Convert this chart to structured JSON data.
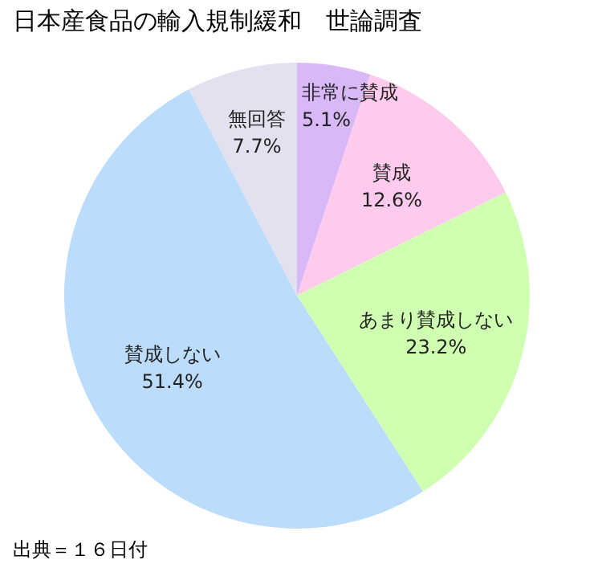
{
  "chart_data": {
    "type": "pie",
    "title": "日本産食品の輸入規制緩和　世論調査",
    "categories": [
      "非常に賛成",
      "賛成",
      "あまり賛成しない",
      "賛成しない",
      "無回答"
    ],
    "values": [
      5.1,
      12.6,
      23.2,
      51.4,
      7.7
    ],
    "value_labels": [
      "5.1%",
      "12.6%",
      "23.2%",
      "51.4%",
      "7.7%"
    ],
    "colors": [
      "#d9b8f7",
      "#ffcbec",
      "#cfffb0",
      "#bcdcfc",
      "#e3e1ef"
    ],
    "legend": false,
    "annotations": [
      "出典＝１６日付"
    ]
  }
}
